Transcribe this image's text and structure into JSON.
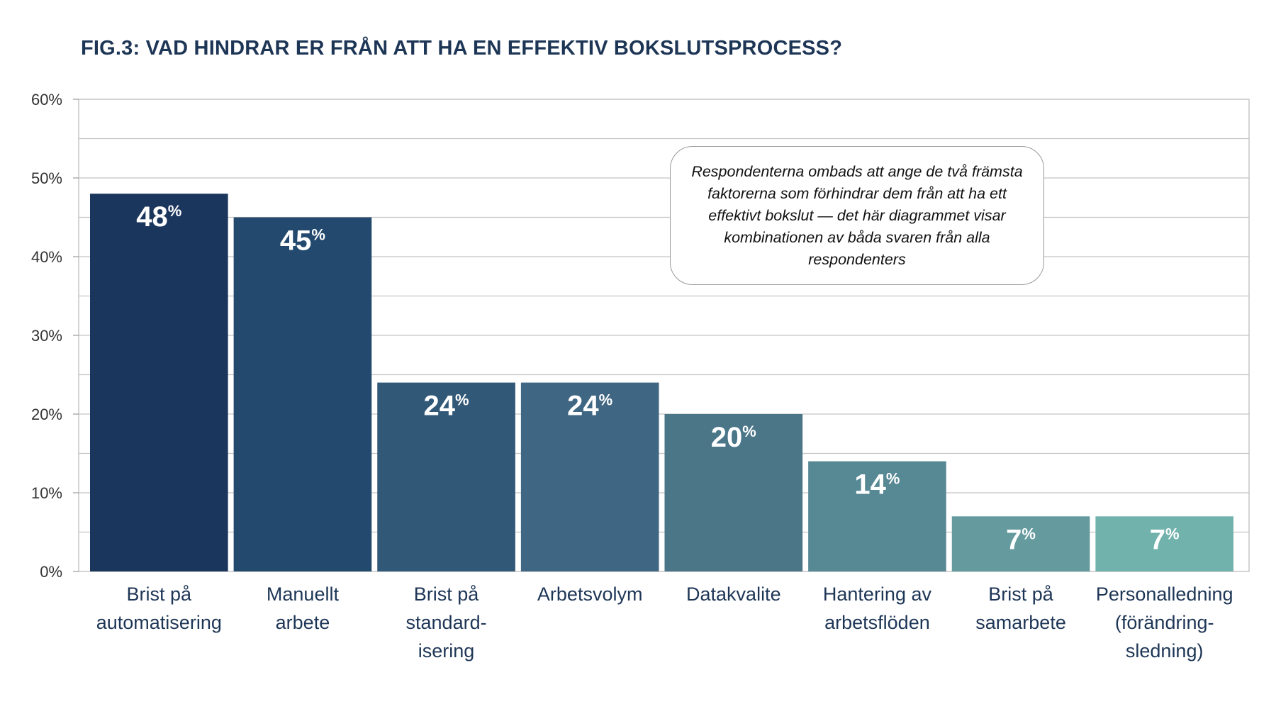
{
  "chart_data": {
    "type": "bar",
    "title": "FIG.3: VAD HINDRAR ER FRÅN ATT HA EN EFFEKTIV BOKSLUTSPROCESS?",
    "categories": [
      [
        "Brist på",
        "automatisering"
      ],
      [
        "Manuellt",
        "arbete"
      ],
      [
        "Brist på",
        "standard-",
        "isering"
      ],
      [
        "Arbetsvolym"
      ],
      [
        "Datakvalite"
      ],
      [
        "Hantering av",
        "arbetsflöden"
      ],
      [
        "Brist på",
        "samarbete"
      ],
      [
        "Personalledning",
        "(förändring-",
        "sledning)"
      ]
    ],
    "values": [
      48,
      45,
      24,
      24,
      20,
      14,
      7,
      7
    ],
    "value_labels": [
      "48",
      "45",
      "24",
      "24",
      "20",
      "14",
      "7",
      "7"
    ],
    "value_unit": "%",
    "bar_colors": [
      "#1b365d",
      "#234a6e",
      "#325878",
      "#3f6682",
      "#4a7688",
      "#578995",
      "#659a9e",
      "#72b2ac"
    ],
    "ylim": [
      0,
      60
    ],
    "yticks": [
      0,
      10,
      20,
      30,
      40,
      50,
      60
    ],
    "ytick_labels": [
      "0%",
      "10%",
      "20%",
      "30%",
      "40%",
      "50%",
      "60%"
    ],
    "xlabel": "",
    "ylabel": "",
    "grid": true,
    "annotation": "Respondenterna ombads att ange de två främsta faktorerna som förhindrar dem från att ha ett effektivt bokslut — det här diagrammet visar kombinationen av båda svaren från alla respondenters"
  }
}
